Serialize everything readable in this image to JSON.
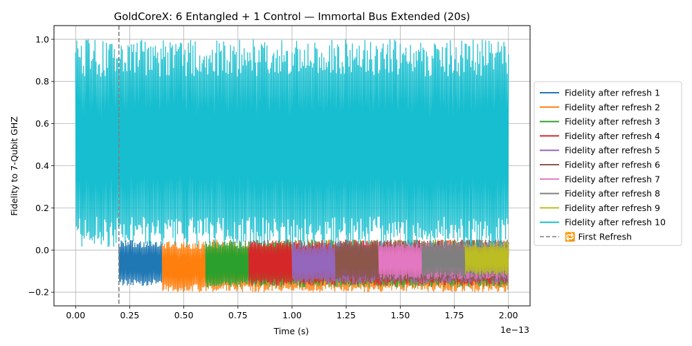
{
  "chart_data": {
    "type": "line",
    "title": "GoldCoreX: 6 Entangled + 1 Control — Immortal Bus Extended (20s)",
    "xlabel": "Time (s)",
    "ylabel": "Fidelity to 7-Qubit GHZ",
    "x_offset_label": "1e−13",
    "xlim": [
      -0.1,
      2.1
    ],
    "ylim": [
      -0.265,
      1.065
    ],
    "x_ticks": [
      0.0,
      0.25,
      0.5,
      0.75,
      1.0,
      1.25,
      1.5,
      1.75,
      2.0
    ],
    "x_tick_labels": [
      "0.00",
      "0.25",
      "0.50",
      "0.75",
      "1.00",
      "1.25",
      "1.50",
      "1.75",
      "2.00"
    ],
    "y_ticks": [
      -0.2,
      0.0,
      0.2,
      0.4,
      0.6,
      0.8,
      1.0
    ],
    "y_tick_labels": [
      "−0.2",
      "0.0",
      "0.2",
      "0.4",
      "0.6",
      "0.8",
      "1.0"
    ],
    "grid": true,
    "legend_position": "outside-right",
    "series": [
      {
        "name": "Fidelity after refresh 1",
        "color": "#1f77b4",
        "x_range": [
          0.2,
          0.4
        ],
        "y_min": -0.17,
        "y_max": 0.05
      },
      {
        "name": "Fidelity after refresh 2",
        "color": "#ff7f0e",
        "x_range": [
          0.4,
          2.0
        ],
        "y_min": -0.2,
        "y_max": 0.05
      },
      {
        "name": "Fidelity after refresh 3",
        "color": "#2ca02c",
        "x_range": [
          0.6,
          2.0
        ],
        "y_min": -0.18,
        "y_max": 0.05
      },
      {
        "name": "Fidelity after refresh 4",
        "color": "#d62728",
        "x_range": [
          0.8,
          2.0
        ],
        "y_min": -0.17,
        "y_max": 0.05
      },
      {
        "name": "Fidelity after refresh 5",
        "color": "#9467bd",
        "x_range": [
          1.0,
          2.0
        ],
        "y_min": -0.16,
        "y_max": 0.04
      },
      {
        "name": "Fidelity after refresh 6",
        "color": "#8c564b",
        "x_range": [
          1.2,
          2.0
        ],
        "y_min": -0.15,
        "y_max": 0.05
      },
      {
        "name": "Fidelity after refresh 7",
        "color": "#e377c2",
        "x_range": [
          1.4,
          2.0
        ],
        "y_min": -0.14,
        "y_max": 0.04
      },
      {
        "name": "Fidelity after refresh 8",
        "color": "#7f7f7f",
        "x_range": [
          1.6,
          2.0
        ],
        "y_min": -0.13,
        "y_max": 0.04
      },
      {
        "name": "Fidelity after refresh 9",
        "color": "#bcbd22",
        "x_range": [
          1.8,
          2.0
        ],
        "y_min": -0.12,
        "y_max": 0.04
      },
      {
        "name": "Fidelity after refresh 10",
        "color": "#17becf",
        "x_range": [
          0.0,
          2.0
        ],
        "y_min": 0.01,
        "y_max": 1.0
      }
    ],
    "vline": {
      "name": "🔁 First Refresh",
      "x": 0.2,
      "color": "#7f7f7f",
      "style": "dashed"
    }
  }
}
